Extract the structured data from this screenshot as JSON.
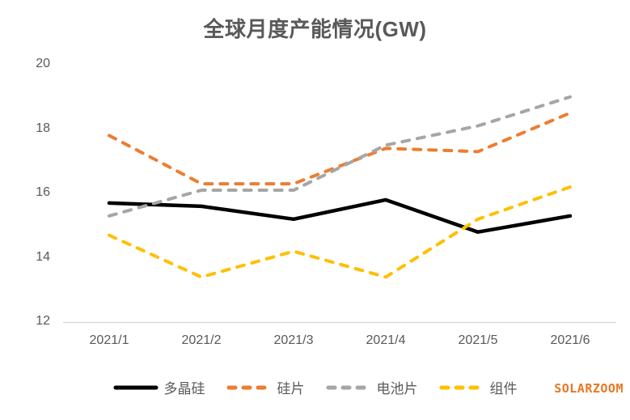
{
  "title": "全球月度产能情况(GW)",
  "watermark": "SOLARZOOM",
  "colors": {
    "title_text": "#595959",
    "axis_text": "#595959",
    "axis_line": "#D9D9D9",
    "watermark": "#E87722"
  },
  "chart_data": {
    "type": "line",
    "title": "全球月度产能情况(GW)",
    "categories": [
      "2021/1",
      "2021/2",
      "2021/3",
      "2021/4",
      "2021/5",
      "2021/6"
    ],
    "series": [
      {
        "name": "多晶硅",
        "values": [
          15.7,
          15.6,
          15.2,
          15.8,
          14.8,
          15.3
        ],
        "color": "#000000",
        "style": "solid"
      },
      {
        "name": "硅片",
        "values": [
          17.8,
          16.3,
          16.3,
          17.4,
          17.3,
          18.5
        ],
        "color": "#ED7D31",
        "style": "dashed"
      },
      {
        "name": "电池片",
        "values": [
          15.3,
          16.1,
          16.1,
          17.5,
          18.1,
          19.0
        ],
        "color": "#A6A6A6",
        "style": "dashed"
      },
      {
        "name": "组件",
        "values": [
          14.7,
          13.4,
          14.2,
          13.4,
          15.2,
          16.2
        ],
        "color": "#FFC000",
        "style": "dashed"
      }
    ],
    "xlabel": "",
    "ylabel": "",
    "ylim": [
      12,
      20
    ],
    "yticks": [
      12,
      14,
      16,
      18,
      20
    ],
    "grid": false,
    "legend_position": "bottom"
  }
}
